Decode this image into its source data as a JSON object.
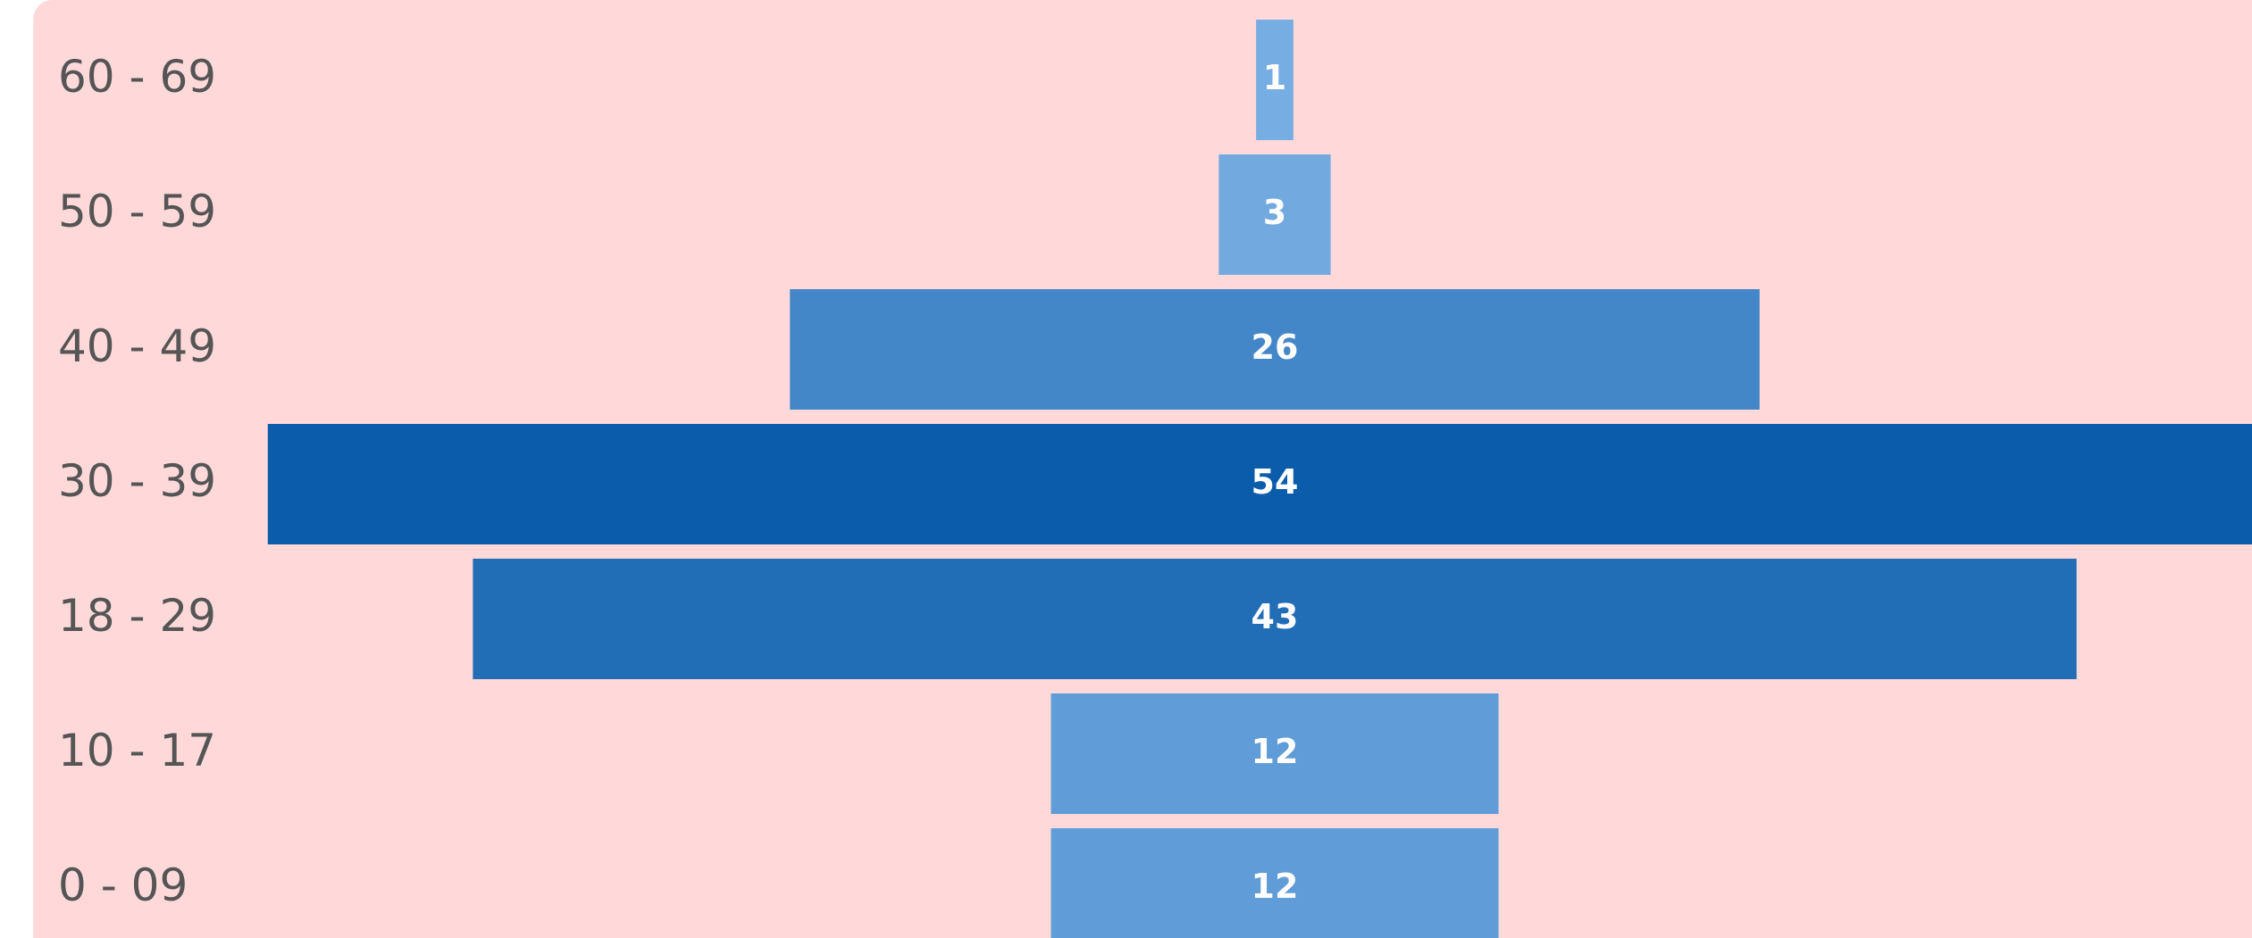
{
  "chart_data": {
    "type": "bar",
    "orientation": "horizontal-centered",
    "categories": [
      "60 - 69",
      "50 - 59",
      "40 - 49",
      "30 - 39",
      "18 - 29",
      "10 - 17",
      "0 - 09"
    ],
    "values": [
      1,
      3,
      26,
      54,
      43,
      12,
      12
    ],
    "title": "",
    "xlabel": "",
    "ylabel": "",
    "data_labels": true,
    "colors": {
      "background": "#ffd9da",
      "label_text": "#555555",
      "value_text": "#ffffff",
      "bar_low": "#76ade2",
      "bar_high": "#0b5cab"
    }
  }
}
